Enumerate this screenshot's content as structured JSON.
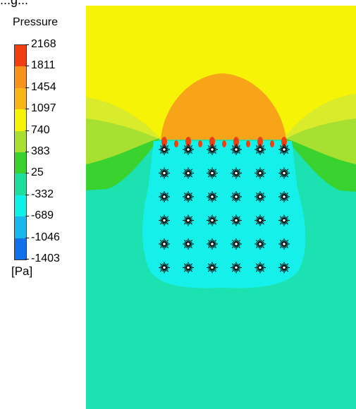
{
  "figure": {
    "cropped_text": "...g..."
  },
  "legend": {
    "title": "Pressure",
    "unit": "[Pa]",
    "labels": [
      "2168",
      "1811",
      "1454",
      "1097",
      "740",
      "383",
      "25",
      "-332",
      "-689",
      "-1046",
      "-1403"
    ],
    "colors": [
      "#f03e0f",
      "#f7921a",
      "#f8b618",
      "#f7f306",
      "#a8e032",
      "#39d22f",
      "#1fdc9f",
      "#10f0e6",
      "#17b8ec",
      "#1271ea",
      "#0a33e6"
    ]
  },
  "plot": {
    "colors": {
      "top": "#f7f306",
      "top_light": "#f4f34a",
      "dome": "#f8a419",
      "mid": "#b0e635",
      "green": "#39d22f",
      "field": "#1be2b0",
      "cyan": "#16f0ea",
      "red": "#f03e0f"
    },
    "markers": {
      "rows": 6,
      "cols": 6
    }
  }
}
